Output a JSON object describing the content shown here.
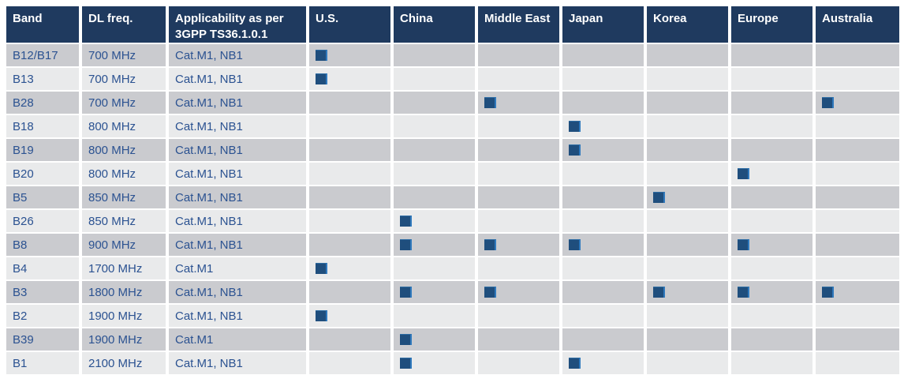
{
  "table": {
    "columns": [
      {
        "key": "band",
        "label": "Band"
      },
      {
        "key": "dl_freq",
        "label": "DL freq."
      },
      {
        "key": "applicability",
        "label": "Applicability as per 3GPP TS36.1.0.1"
      },
      {
        "key": "us",
        "label": "U.S."
      },
      {
        "key": "china",
        "label": "China"
      },
      {
        "key": "middle_east",
        "label": "Middle East"
      },
      {
        "key": "japan",
        "label": "Japan"
      },
      {
        "key": "korea",
        "label": "Korea"
      },
      {
        "key": "europe",
        "label": "Europe"
      },
      {
        "key": "australia",
        "label": "Australia"
      }
    ],
    "region_keys": [
      "us",
      "china",
      "middle_east",
      "japan",
      "korea",
      "europe",
      "australia"
    ],
    "rows": [
      {
        "band": "B12/B17",
        "dl_freq": "700 MHz",
        "applicability": "Cat.M1, NB1",
        "regions": [
          "us"
        ]
      },
      {
        "band": "B13",
        "dl_freq": "700 MHz",
        "applicability": "Cat.M1, NB1",
        "regions": [
          "us"
        ]
      },
      {
        "band": "B28",
        "dl_freq": "700 MHz",
        "applicability": "Cat.M1, NB1",
        "regions": [
          "middle_east",
          "australia"
        ]
      },
      {
        "band": "B18",
        "dl_freq": "800 MHz",
        "applicability": "Cat.M1, NB1",
        "regions": [
          "japan"
        ]
      },
      {
        "band": "B19",
        "dl_freq": "800 MHz",
        "applicability": "Cat.M1, NB1",
        "regions": [
          "japan"
        ]
      },
      {
        "band": "B20",
        "dl_freq": "800 MHz",
        "applicability": "Cat.M1, NB1",
        "regions": [
          "europe"
        ]
      },
      {
        "band": "B5",
        "dl_freq": "850 MHz",
        "applicability": "Cat.M1, NB1",
        "regions": [
          "korea"
        ]
      },
      {
        "band": "B26",
        "dl_freq": "850 MHz",
        "applicability": "Cat.M1, NB1",
        "regions": [
          "china"
        ]
      },
      {
        "band": "B8",
        "dl_freq": "900 MHz",
        "applicability": "Cat.M1, NB1",
        "regions": [
          "china",
          "middle_east",
          "japan",
          "europe"
        ]
      },
      {
        "band": "B4",
        "dl_freq": "1700 MHz",
        "applicability": "Cat.M1",
        "regions": [
          "us"
        ]
      },
      {
        "band": "B3",
        "dl_freq": "1800 MHz",
        "applicability": "Cat.M1, NB1",
        "regions": [
          "china",
          "middle_east",
          "korea",
          "europe",
          "australia"
        ]
      },
      {
        "band": "B2",
        "dl_freq": "1900 MHz",
        "applicability": "Cat.M1, NB1",
        "regions": [
          "us"
        ]
      },
      {
        "band": "B39",
        "dl_freq": "1900 MHz",
        "applicability": "Cat.M1",
        "regions": [
          "china"
        ]
      },
      {
        "band": "B1",
        "dl_freq": "2100 MHz",
        "applicability": "Cat.M1, NB1",
        "regions": [
          "china",
          "japan"
        ]
      }
    ],
    "marker": {
      "icon": "filled-square-icon",
      "meaning": "band applicable in region"
    }
  },
  "colors": {
    "header_bg": "#1f3a5f",
    "header_text": "#ffffff",
    "row_odd_bg": "#cacbcf",
    "row_even_bg": "#e9eaeb",
    "body_text": "#2b5291",
    "marker_fill": "#1f4e7d",
    "marker_edge": "#2f79bd"
  }
}
